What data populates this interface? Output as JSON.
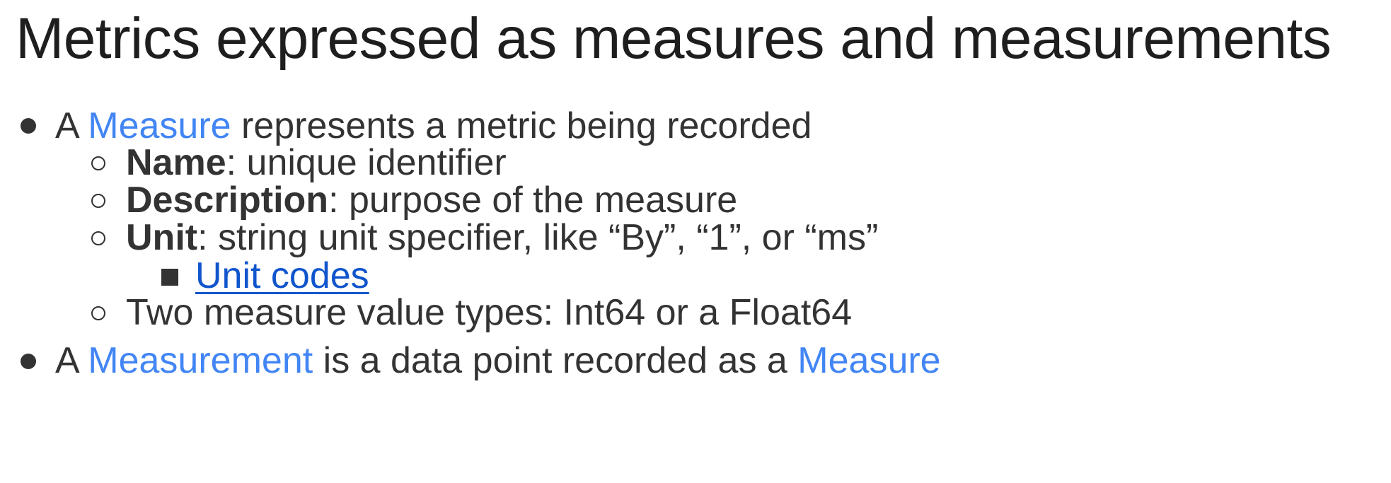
{
  "slide": {
    "title": "Metrics expressed as measures and measurements",
    "bullet1": {
      "prefix": "A ",
      "term": "Measure",
      "suffix": " represents a metric being recorded"
    },
    "sub_items": [
      {
        "label": "Name",
        "text": ": unique identifier"
      },
      {
        "label": "Description",
        "text": ": purpose of the measure"
      },
      {
        "label": "Unit",
        "text": ": string unit specifier, like “By”, “1”, or “ms”"
      }
    ],
    "unit_codes_link": "Unit codes",
    "value_types": "Two measure value types: Int64 or a Float64",
    "bullet2": {
      "prefix": "A ",
      "term1": "Measurement",
      "middle": " is a data point recorded as a ",
      "term2": "Measure"
    }
  },
  "colors": {
    "text": "#333333",
    "term": "#4285f4",
    "link": "#1155cc"
  }
}
